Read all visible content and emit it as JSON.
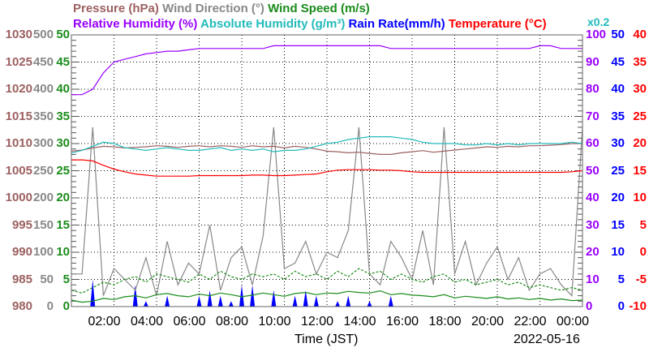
{
  "chart_data": {
    "type": "line",
    "legend": [
      {
        "label": "Pressure (hPa)",
        "color": "#9c6060"
      },
      {
        "label": "Wind Direction (°)",
        "color": "#888888"
      },
      {
        "label": "Wind Speed (m/s)",
        "color": "#1a8c1a"
      },
      {
        "label": "Relative Humidity (%)",
        "color": "#9900ff"
      },
      {
        "label": "Absolute Humidity (g/m³)",
        "color": "#22bbbb"
      },
      {
        "label": "Rain Rate(mm/h)",
        "color": "#0000ff"
      },
      {
        "label": "Temperature (°C)",
        "color": "#ff0000"
      }
    ],
    "abs_humidity_scale_note": "x0.2",
    "xlabel": "Time (JST)",
    "date": "2022-05-16",
    "xlim": [
      0,
      24
    ],
    "x_ticks": [
      "02:00",
      "04:00",
      "06:00",
      "08:00",
      "10:00",
      "12:00",
      "14:00",
      "16:00",
      "18:00",
      "20:00",
      "22:00",
      "00:00"
    ],
    "axes": {
      "pressure": {
        "range": [
          980,
          1030
        ],
        "ticks": [
          "1030",
          "1025",
          "1020",
          "1015",
          "1010",
          "1005",
          "1000",
          "995",
          "990",
          "985",
          "980"
        ],
        "color": "#9c6060"
      },
      "wind_direction": {
        "range": [
          0,
          500
        ],
        "ticks": [
          "500",
          "450",
          "400",
          "350",
          "300",
          "250",
          "200",
          "150",
          "100",
          "50",
          "0"
        ],
        "color": "#888888"
      },
      "wind_speed": {
        "range": [
          0,
          50
        ],
        "ticks": [
          "50",
          "45",
          "40",
          "35",
          "30",
          "25",
          "20",
          "15",
          "10",
          "5",
          "0"
        ],
        "color": "#1a8c1a"
      },
      "humidity": {
        "range": [
          0,
          100
        ],
        "ticks": [
          "100",
          "90",
          "80",
          "70",
          "60",
          "50",
          "40",
          "30",
          "20",
          "10",
          "0"
        ],
        "color": "#9900ff"
      },
      "rain": {
        "range": [
          0,
          50
        ],
        "ticks": [
          "50",
          "45",
          "40",
          "35",
          "30",
          "25",
          "20",
          "15",
          "10",
          "5",
          "0"
        ],
        "color": "#0000ff"
      },
      "temperature": {
        "range": [
          -10,
          40
        ],
        "ticks": [
          "40",
          "35",
          "30",
          "25",
          "20",
          "15",
          "10",
          "5",
          "0",
          "-5",
          "-10"
        ],
        "color": "#ff0000"
      }
    },
    "x_hours_step": 0.5,
    "series": {
      "humidity": [
        78,
        78,
        80,
        86,
        90,
        91,
        92,
        93,
        93.5,
        94,
        94,
        94.5,
        95,
        95,
        95,
        95,
        95,
        95,
        95,
        96,
        96,
        96,
        96,
        96,
        96,
        96,
        96,
        96,
        96,
        96,
        95,
        95,
        95,
        95,
        95,
        95,
        95,
        95,
        95,
        95,
        95,
        95,
        95,
        95,
        96,
        96,
        95,
        95,
        95
      ],
      "temperature": [
        17,
        17,
        16.8,
        16,
        15.3,
        14.8,
        14.4,
        14.2,
        14,
        14,
        14,
        14,
        14.1,
        14.1,
        14.1,
        14.1,
        14.1,
        14.2,
        14.2,
        14.1,
        14.1,
        14.2,
        14.3,
        14.4,
        14.8,
        15.1,
        15.2,
        15.2,
        15.2,
        15.1,
        15.1,
        15,
        14.8,
        14.7,
        14.7,
        14.7,
        14.7,
        14.7,
        14.7,
        14.7,
        14.7,
        14.7,
        14.7,
        14.7,
        14.7,
        14.7,
        14.7,
        14.8,
        15
      ],
      "pressure": [
        1008.6,
        1008.8,
        1009.2,
        1009.5,
        1009.4,
        1009.2,
        1009.3,
        1009.4,
        1009.6,
        1009.5,
        1009.3,
        1009.5,
        1009.6,
        1009.4,
        1009.6,
        1009.5,
        1009.3,
        1009.6,
        1009.4,
        1009.5,
        1009.2,
        1009.5,
        1009.3,
        1009.0,
        1008.6,
        1008.5,
        1008.3,
        1008.4,
        1008.2,
        1008.0,
        1008.0,
        1008.3,
        1008.5,
        1008.7,
        1008.4,
        1008.6,
        1008.8,
        1009.0,
        1009.2,
        1009.4,
        1009.3,
        1009.5,
        1009.4,
        1009.6,
        1009.6,
        1009.7,
        1009.8,
        1010,
        1010
      ],
      "abs_humidity": [
        11.3,
        11.5,
        11.8,
        12.1,
        12.0,
        11.7,
        11.6,
        11.5,
        11.6,
        11.7,
        11.6,
        11.5,
        11.5,
        11.6,
        11.7,
        11.5,
        11.6,
        11.5,
        11.6,
        11.4,
        11.5,
        11.5,
        11.6,
        11.8,
        12.0,
        12.1,
        12.3,
        12.4,
        12.5,
        12.5,
        12.5,
        12.4,
        12.3,
        12.1,
        12.0,
        12.0,
        12.0,
        11.9,
        11.9,
        12.0,
        11.9,
        12.0,
        11.9,
        12.0,
        12.0,
        12.0,
        12.0,
        12.1,
        12.0
      ],
      "wind_speed_avg": [
        1.2,
        0.8,
        1,
        1.5,
        1.3,
        1.8,
        2,
        1.6,
        2.2,
        2.4,
        2,
        1.8,
        2.3,
        2,
        2.5,
        2.2,
        1.8,
        2.1,
        2.5,
        2.2,
        1.9,
        2.4,
        2.6,
        2.2,
        2.5,
        2.4,
        2.8,
        2.6,
        2.5,
        2.9,
        2.2,
        2.4,
        2.1,
        2.0,
        1.8,
        2.2,
        1.6,
        1.9,
        1.7,
        1.5,
        1.8,
        1.4,
        1.6,
        1.3,
        1.5,
        1.2,
        1.4,
        1.1,
        1.2
      ],
      "wind_speed_gust": [
        3,
        2.5,
        3.5,
        4.5,
        4,
        5,
        5.5,
        4.5,
        6,
        5.5,
        5,
        4.5,
        6,
        5,
        6.5,
        5.5,
        5,
        6,
        5.5,
        6,
        5,
        6.5,
        5.5,
        6,
        5,
        6.5,
        5.5,
        7,
        6,
        6.5,
        5,
        6,
        5,
        4.5,
        5.5,
        6,
        4.5,
        5,
        4,
        4.5,
        5,
        4,
        4.5,
        3.5,
        4,
        3.5,
        3,
        3.5,
        3
      ],
      "wind_direction": [
        60,
        60,
        330,
        20,
        70,
        50,
        30,
        90,
        20,
        120,
        40,
        80,
        60,
        150,
        30,
        90,
        110,
        40,
        130,
        330,
        70,
        80,
        120,
        60,
        100,
        90,
        140,
        330,
        60,
        40,
        120,
        90,
        50,
        140,
        40,
        330,
        60,
        120,
        40,
        80,
        110,
        50,
        90,
        30,
        60,
        70,
        40,
        20,
        330
      ],
      "rain_rate": [
        0,
        0,
        5,
        0,
        0,
        0,
        4,
        1,
        0,
        2,
        0,
        0,
        2,
        3,
        2,
        1,
        4,
        4,
        0,
        3,
        0,
        2,
        3,
        2,
        0,
        1,
        2,
        0,
        1,
        0,
        2,
        0,
        0,
        0,
        0,
        0,
        0,
        0,
        0,
        0,
        0,
        0,
        0,
        0,
        0,
        0,
        0,
        0,
        0
      ]
    }
  }
}
